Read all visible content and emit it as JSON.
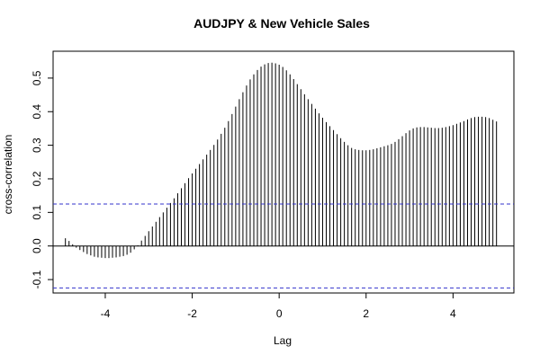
{
  "chart_data": {
    "type": "bar",
    "title": "AUDJPY & New Vehicle Sales",
    "xlabel": "Lag",
    "ylabel": "cross-correlation",
    "xlim": [
      -5.2,
      5.4
    ],
    "ylim": [
      -0.14,
      0.58
    ],
    "xticks": [
      -4,
      -2,
      0,
      2,
      4
    ],
    "xtick_labels": [
      "-4",
      "-2",
      "0",
      "2",
      "4"
    ],
    "yticks": [
      -0.1,
      0.0,
      0.1,
      0.2,
      0.3,
      0.4,
      0.5
    ],
    "ytick_labels": [
      "-0.1",
      "0.0",
      "0.1",
      "0.2",
      "0.3",
      "0.4",
      "0.5"
    ],
    "confidence_limits": [
      0.125,
      -0.125
    ],
    "zero_line": 0,
    "grid": false,
    "colors": {
      "bars": "#000000",
      "confidence": "#3333cc",
      "axes": "#000000"
    },
    "x": [
      -4.9167,
      -4.8333,
      -4.75,
      -4.6667,
      -4.5833,
      -4.5,
      -4.4167,
      -4.3333,
      -4.25,
      -4.1667,
      -4.0833,
      -4.0,
      -3.9167,
      -3.8333,
      -3.75,
      -3.6667,
      -3.5833,
      -3.5,
      -3.4167,
      -3.3333,
      -3.25,
      -3.1667,
      -3.0833,
      -3.0,
      -2.9167,
      -2.8333,
      -2.75,
      -2.6667,
      -2.5833,
      -2.5,
      -2.4167,
      -2.3333,
      -2.25,
      -2.1667,
      -2.0833,
      -2.0,
      -1.9167,
      -1.8333,
      -1.75,
      -1.6667,
      -1.5833,
      -1.5,
      -1.4167,
      -1.3333,
      -1.25,
      -1.1667,
      -1.0833,
      -1.0,
      -0.9167,
      -0.8333,
      -0.75,
      -0.6667,
      -0.5833,
      -0.5,
      -0.4167,
      -0.3333,
      -0.25,
      -0.1667,
      -0.0833,
      0.0,
      0.0833,
      0.1667,
      0.25,
      0.3333,
      0.4167,
      0.5,
      0.5833,
      0.6667,
      0.75,
      0.8333,
      0.9167,
      1.0,
      1.0833,
      1.1667,
      1.25,
      1.3333,
      1.4167,
      1.5,
      1.5833,
      1.6667,
      1.75,
      1.8333,
      1.9167,
      2.0,
      2.0833,
      2.1667,
      2.25,
      2.3333,
      2.4167,
      2.5,
      2.5833,
      2.6667,
      2.75,
      2.8333,
      2.9167,
      3.0,
      3.0833,
      3.1667,
      3.25,
      3.3333,
      3.4167,
      3.5,
      3.5833,
      3.6667,
      3.75,
      3.8333,
      3.9167,
      4.0,
      4.0833,
      4.1667,
      4.25,
      4.3333,
      4.4167,
      4.5,
      4.5833,
      4.6667,
      4.75,
      4.8333,
      4.9167,
      5.0
    ],
    "values": [
      0.023,
      0.015,
      0.005,
      -0.005,
      -0.012,
      -0.018,
      -0.024,
      -0.028,
      -0.032,
      -0.034,
      -0.035,
      -0.036,
      -0.036,
      -0.035,
      -0.034,
      -0.032,
      -0.03,
      -0.026,
      -0.02,
      -0.01,
      0.002,
      0.016,
      0.03,
      0.044,
      0.058,
      0.072,
      0.086,
      0.1,
      0.114,
      0.128,
      0.142,
      0.157,
      0.172,
      0.187,
      0.202,
      0.216,
      0.23,
      0.244,
      0.258,
      0.272,
      0.286,
      0.301,
      0.317,
      0.334,
      0.352,
      0.372,
      0.393,
      0.415,
      0.437,
      0.458,
      0.478,
      0.496,
      0.511,
      0.524,
      0.534,
      0.541,
      0.545,
      0.546,
      0.544,
      0.54,
      0.533,
      0.523,
      0.511,
      0.497,
      0.482,
      0.467,
      0.452,
      0.437,
      0.423,
      0.409,
      0.395,
      0.382,
      0.369,
      0.357,
      0.345,
      0.333,
      0.321,
      0.31,
      0.3,
      0.292,
      0.288,
      0.286,
      0.285,
      0.285,
      0.286,
      0.288,
      0.291,
      0.294,
      0.297,
      0.3,
      0.304,
      0.31,
      0.318,
      0.327,
      0.336,
      0.344,
      0.35,
      0.353,
      0.354,
      0.354,
      0.353,
      0.352,
      0.351,
      0.351,
      0.352,
      0.354,
      0.357,
      0.36,
      0.364,
      0.368,
      0.372,
      0.377,
      0.381,
      0.384,
      0.385,
      0.385,
      0.384,
      0.381,
      0.376,
      0.371
    ]
  }
}
